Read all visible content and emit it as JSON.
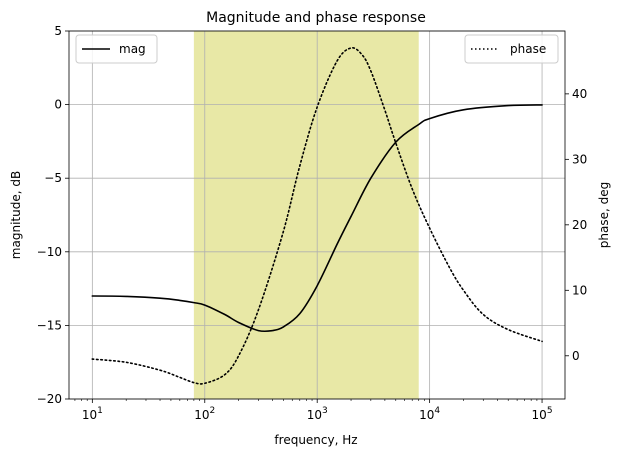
{
  "chart_data": {
    "type": "line",
    "title": "Magnitude and phase response",
    "xlabel": "frequency, Hz",
    "ylabel": "magnitude, dB",
    "y2label": "phase, deg",
    "xscale": "log",
    "xlim": [
      6.2,
      160000
    ],
    "ylim": [
      -20,
      5
    ],
    "y2lim": [
      -6.6,
      49.6
    ],
    "grid": true,
    "x_ticks": [
      10,
      100,
      1000,
      10000,
      100000
    ],
    "x_tick_labels": [
      {
        "base": "10",
        "exp": "1"
      },
      {
        "base": "10",
        "exp": "2"
      },
      {
        "base": "10",
        "exp": "3"
      },
      {
        "base": "10",
        "exp": "4"
      },
      {
        "base": "10",
        "exp": "5"
      }
    ],
    "y_ticks": [
      5,
      0,
      -5,
      -10,
      -15,
      -20
    ],
    "y_tick_labels": [
      "5",
      "0",
      "−5",
      "−10",
      "−15",
      "−20"
    ],
    "y2_ticks": [
      0,
      10,
      20,
      30,
      40
    ],
    "y2_tick_labels": [
      "0",
      "10",
      "20",
      "30",
      "40"
    ],
    "shaded_band": {
      "x": [
        80,
        8000
      ],
      "color": "#e8e8a6"
    },
    "series": [
      {
        "name": "mag",
        "axis": "left",
        "style": "solid",
        "color": "#000000",
        "x": [
          10,
          20,
          40,
          60,
          80,
          100,
          150,
          200,
          300,
          400,
          500,
          700,
          1000,
          1500,
          2000,
          3000,
          5000,
          8000,
          10000,
          20000,
          50000,
          100000
        ],
        "y": [
          -13.0,
          -13.03,
          -13.15,
          -13.3,
          -13.45,
          -13.62,
          -14.25,
          -14.8,
          -15.35,
          -15.35,
          -15.1,
          -14.2,
          -12.3,
          -9.5,
          -7.6,
          -5.0,
          -2.55,
          -1.35,
          -0.95,
          -0.35,
          -0.07,
          -0.02
        ]
      },
      {
        "name": "phase",
        "axis": "right",
        "style": "dotted",
        "color": "#000000",
        "x": [
          10,
          20,
          40,
          60,
          80,
          100,
          150,
          200,
          300,
          500,
          700,
          1000,
          1500,
          2000,
          2500,
          3000,
          4000,
          5000,
          7000,
          10000,
          15000,
          20000,
          30000,
          50000,
          100000
        ],
        "y": [
          -0.5,
          -1.0,
          -2.2,
          -3.3,
          -4.1,
          -4.2,
          -2.9,
          0.0,
          7.0,
          19.0,
          29.0,
          38.0,
          45.0,
          47.0,
          46.0,
          43.5,
          37.5,
          32.5,
          25.5,
          19.5,
          13.5,
          10.0,
          6.3,
          4.0,
          2.2
        ]
      }
    ],
    "legends": [
      {
        "series": "mag",
        "position": "upper-left"
      },
      {
        "series": "phase",
        "position": "upper-right"
      }
    ]
  }
}
